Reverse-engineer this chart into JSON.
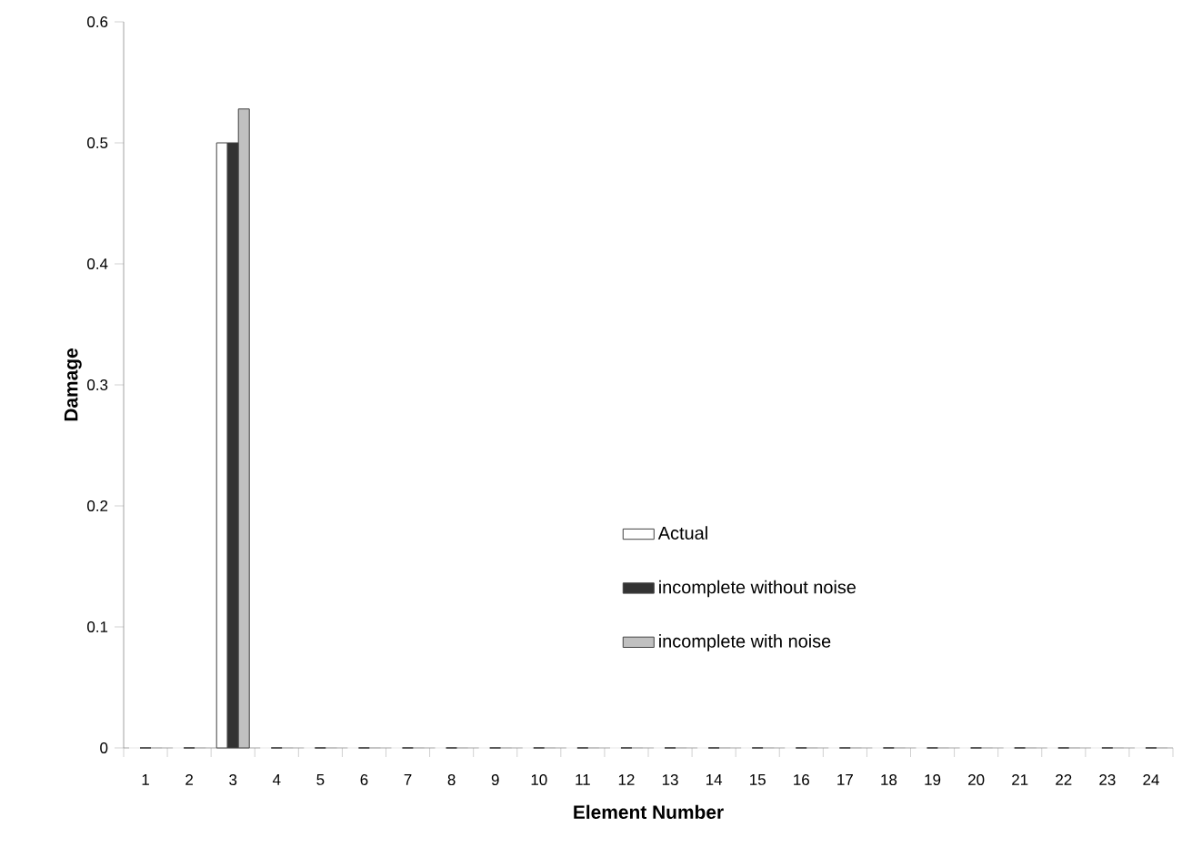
{
  "chart_data": {
    "type": "bar",
    "xlabel": "Element Number",
    "ylabel": "Damage",
    "categories": [
      "1",
      "2",
      "3",
      "4",
      "5",
      "6",
      "7",
      "8",
      "9",
      "10",
      "11",
      "12",
      "13",
      "14",
      "15",
      "16",
      "17",
      "18",
      "19",
      "20",
      "21",
      "22",
      "23",
      "24"
    ],
    "series": [
      {
        "name": "Actual",
        "color": "#ffffff",
        "values": [
          0,
          0,
          0.5,
          0,
          0,
          0,
          0,
          0,
          0,
          0,
          0,
          0,
          0,
          0,
          0,
          0,
          0,
          0,
          0,
          0,
          0,
          0,
          0,
          0
        ]
      },
      {
        "name": "incomplete  without noise",
        "color": "#333333",
        "values": [
          0,
          0,
          0.5,
          0,
          0,
          0,
          0,
          0,
          0,
          0,
          0,
          0,
          0,
          0,
          0,
          0,
          0,
          0,
          0,
          0,
          0,
          0,
          0,
          0
        ]
      },
      {
        "name": "incomplete  with noise",
        "color": "#c0c0c0",
        "values": [
          0,
          0,
          0.528,
          0,
          0,
          0,
          0,
          0,
          0,
          0,
          0,
          0,
          0,
          0,
          0,
          0,
          0,
          0,
          0,
          0,
          0,
          0,
          0,
          0
        ]
      }
    ],
    "ylim": [
      0,
      0.6
    ],
    "yticks": [
      0,
      0.1,
      0.2,
      0.3,
      0.4,
      0.5,
      0.6
    ],
    "grid": false,
    "legend": "bottom"
  }
}
